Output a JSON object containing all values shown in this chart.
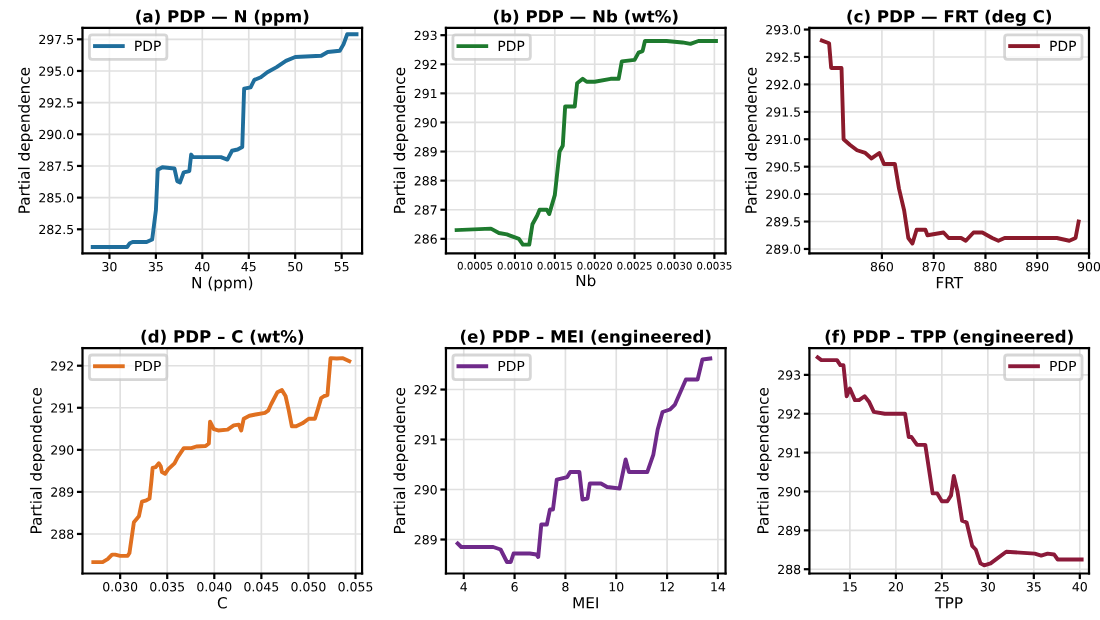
{
  "chart_data": [
    {
      "type": "line",
      "title": "(a) PDP — N (ppm)",
      "xlabel": "N (ppm)",
      "ylabel": "Partial dependence",
      "legend": "top left",
      "grid": true,
      "xlim": [
        27.1,
        57.2
      ],
      "xticks": [
        30,
        35,
        40,
        45,
        50,
        55
      ],
      "ylim": [
        280.6,
        298.4
      ],
      "yticks": [
        {
          "value": 282.5,
          "label": "282.5"
        },
        {
          "value": 285,
          "label": "285.0"
        },
        {
          "value": 287.5,
          "label": "287.5"
        },
        {
          "value": 290,
          "label": "290.0"
        },
        {
          "value": 292.5,
          "label": "292.5"
        },
        {
          "value": 295,
          "label": "295.0"
        },
        {
          "value": 297.5,
          "label": "297.5"
        }
      ],
      "series": [
        {
          "name": "PDP",
          "color": "#1f6e9c",
          "x": [
            28.2,
            31.9,
            32.2,
            32.5,
            34,
            34.6,
            35,
            35.2,
            35.7,
            37,
            37.3,
            37.6,
            38,
            38.6,
            38.8,
            39,
            42,
            42.7,
            43.2,
            43.8,
            44.3,
            44.5,
            45.2,
            45.6,
            46.3,
            47,
            48,
            49,
            50,
            52.8,
            53.5,
            54.8,
            55.2,
            55.6,
            56.6
          ],
          "values": [
            281.1,
            281.1,
            281.4,
            281.5,
            281.5,
            281.7,
            284,
            287.2,
            287.4,
            287.3,
            286.3,
            286.2,
            287,
            287.1,
            288.4,
            288.2,
            288.2,
            288,
            288.7,
            288.8,
            289,
            293.6,
            293.7,
            294.3,
            294.5,
            294.9,
            295.3,
            295.8,
            296.1,
            296.2,
            296.5,
            296.6,
            297.1,
            297.9,
            297.9
          ]
        }
      ]
    },
    {
      "type": "line",
      "title": "(b) PDP — Nb (wt%)",
      "xlabel": "Nb",
      "ylabel": "Partial dependence",
      "legend": "top left",
      "grid": true,
      "xlim": [
        0.000136,
        0.00364
      ],
      "xticks": [
        0.0005,
        {
          "value": 0.001,
          "label": "0.0010"
        },
        0.0015,
        {
          "value": 0.002,
          "label": "0.0020"
        },
        0.0025,
        {
          "value": 0.003,
          "label": "0.0030"
        },
        0.0035
      ],
      "ylim": [
        285.5,
        293.25
      ],
      "yticks": [
        286,
        287,
        288,
        289,
        290,
        291,
        292,
        293
      ],
      "series": [
        {
          "name": "PDP",
          "color": "#1e7a2e",
          "x": [
            0.00027,
            0.0007,
            0.0008,
            0.0009,
            0.001,
            0.00105,
            0.0011,
            0.00118,
            0.00122,
            0.00128,
            0.00131,
            0.0014,
            0.00143,
            0.0015,
            0.00156,
            0.0016,
            0.00163,
            0.00175,
            0.00178,
            0.00185,
            0.0019,
            0.002,
            0.0022,
            0.0023,
            0.00234,
            0.0025,
            0.00255,
            0.0026,
            0.00263,
            0.0029,
            0.0031,
            0.0032,
            0.0033,
            0.00352
          ],
          "values": [
            286.3,
            286.35,
            286.2,
            286.15,
            286.05,
            286.0,
            285.8,
            285.8,
            286.5,
            286.8,
            287.0,
            287.0,
            286.85,
            287.5,
            289.0,
            289.2,
            290.55,
            290.55,
            291.35,
            291.5,
            291.4,
            291.4,
            291.5,
            291.5,
            292.1,
            292.15,
            292.4,
            292.45,
            292.8,
            292.8,
            292.75,
            292.7,
            292.8,
            292.8
          ]
        }
      ]
    },
    {
      "type": "line",
      "title": "(c) PDP — FRT (deg C)",
      "xlabel": "FRT",
      "ylabel": "Partial dependence",
      "legend": "top right",
      "grid": true,
      "xlim": [
        846,
        900
      ],
      "xticks": [
        860,
        870,
        880,
        890,
        900
      ],
      "ylim": [
        288.92,
        293.03
      ],
      "yticks": [
        {
          "value": 289,
          "label": "289.0"
        },
        289.5,
        {
          "value": 290,
          "label": "290.0"
        },
        290.5,
        {
          "value": 291,
          "label": "291.0"
        },
        291.5,
        {
          "value": 292,
          "label": "292.0"
        },
        292.5,
        {
          "value": 293,
          "label": "293.0"
        }
      ],
      "series": [
        {
          "name": "PDP",
          "color": "#8b1a2b",
          "x": [
            848.4,
            849.8,
            850.2,
            852.2,
            852.6,
            853.8,
            855.2,
            856.8,
            858.0,
            859.5,
            860.4,
            862.5,
            863.3,
            864.3,
            865.1,
            865.9,
            866.7,
            868.4,
            868.8,
            871.9,
            872.9,
            875.3,
            876.2,
            877.7,
            879.4,
            881.3,
            882.5,
            883.7,
            889.6,
            893.8,
            896.2,
            897.4,
            898.0
          ],
          "values": [
            292.8,
            292.75,
            292.3,
            292.3,
            291.0,
            290.9,
            290.8,
            290.75,
            290.65,
            290.75,
            290.55,
            290.55,
            290.1,
            289.7,
            289.2,
            289.1,
            289.35,
            289.35,
            289.25,
            289.3,
            289.2,
            289.2,
            289.15,
            289.3,
            289.3,
            289.2,
            289.15,
            289.2,
            289.2,
            289.2,
            289.15,
            289.2,
            289.5
          ]
        }
      ]
    },
    {
      "type": "line",
      "title": "(d) PDP – C (wt%)",
      "xlabel": "C",
      "ylabel": "Partial dependence",
      "legend": "top left",
      "grid": true,
      "xlim": [
        0.026,
        0.0557
      ],
      "xticks": [
        {
          "value": 0.03,
          "label": "0.030"
        },
        0.035,
        {
          "value": 0.04,
          "label": "0.040"
        },
        0.045,
        {
          "value": 0.05,
          "label": "0.050"
        },
        0.055
      ],
      "ylim": [
        287.06,
        292.42
      ],
      "yticks": [
        288,
        289,
        290,
        291,
        292
      ],
      "series": [
        {
          "name": "PDP",
          "color": "#e07020",
          "x": [
            0.02715,
            0.02814,
            0.02867,
            0.02914,
            0.02947,
            0.03,
            0.0308,
            0.03099,
            0.03146,
            0.03199,
            0.03232,
            0.03279,
            0.03312,
            0.03332,
            0.03345,
            0.03378,
            0.03411,
            0.03431,
            0.03444,
            0.03477,
            0.03511,
            0.03577,
            0.0361,
            0.03676,
            0.03756,
            0.03809,
            0.03908,
            0.03942,
            0.03955,
            0.03995,
            0.04041,
            0.04141,
            0.04207,
            0.0426,
            0.04286,
            0.04313,
            0.04373,
            0.04439,
            0.04538,
            0.04572,
            0.04605,
            0.04671,
            0.04718,
            0.04757,
            0.0479,
            0.04824,
            0.0487,
            0.04936,
            0.05003,
            0.05069,
            0.05102,
            0.05135,
            0.05168,
            0.05202,
            0.05235,
            0.05301,
            0.05367,
            0.05434
          ],
          "values": [
            287.33,
            287.33,
            287.4,
            287.51,
            287.51,
            287.48,
            287.48,
            287.55,
            288.28,
            288.42,
            288.77,
            288.8,
            288.84,
            289.26,
            289.57,
            289.59,
            289.68,
            289.61,
            289.47,
            289.43,
            289.54,
            289.68,
            289.82,
            290.04,
            290.04,
            290.08,
            290.09,
            290.15,
            290.67,
            290.49,
            290.46,
            290.48,
            290.58,
            290.6,
            290.46,
            290.74,
            290.81,
            290.84,
            290.88,
            290.93,
            291.09,
            291.37,
            291.42,
            291.28,
            290.95,
            290.56,
            290.56,
            290.63,
            290.74,
            290.74,
            290.98,
            291.23,
            291.28,
            291.3,
            292.18,
            292.17,
            292.18,
            292.11
          ]
        }
      ]
    },
    {
      "type": "line",
      "title": "(e) PDP – MEI (engineered)",
      "xlabel": "MEI",
      "ylabel": "Partial dependence",
      "legend": "top left",
      "grid": true,
      "xlim": [
        3.3,
        14.3
      ],
      "xticks": [
        4,
        6,
        8,
        10,
        12,
        14
      ],
      "ylim": [
        288.32,
        292.83
      ],
      "yticks": [
        289,
        290,
        291,
        292
      ],
      "series": [
        {
          "name": "PDP",
          "color": "#6f2a8a",
          "x": [
            3.76,
            3.9,
            5.16,
            5.45,
            5.7,
            5.85,
            5.96,
            6.6,
            6.86,
            6.93,
            7.05,
            7.27,
            7.39,
            7.51,
            7.66,
            8.07,
            8.19,
            8.55,
            8.67,
            8.87,
            8.96,
            9.4,
            9.64,
            10.13,
            10.37,
            10.5,
            11.22,
            11.46,
            11.63,
            11.82,
            12.11,
            12.31,
            12.74,
            13.2,
            13.39,
            13.7
          ],
          "values": [
            288.92,
            288.85,
            288.85,
            288.8,
            288.55,
            288.55,
            288.72,
            288.72,
            288.7,
            288.65,
            289.3,
            289.3,
            289.6,
            289.6,
            290.2,
            290.25,
            290.35,
            290.35,
            289.8,
            289.82,
            290.12,
            290.12,
            290.05,
            290.02,
            290.6,
            290.35,
            290.35,
            290.7,
            291.2,
            291.55,
            291.6,
            291.7,
            292.2,
            292.2,
            292.6,
            292.62
          ]
        }
      ]
    },
    {
      "type": "line",
      "title": "(f) PDP – TPP (engineered)",
      "xlabel": "TPP",
      "ylabel": "Partial dependence",
      "legend": "top right",
      "grid": true,
      "xlim": [
        10.6,
        41.0
      ],
      "xticks": [
        15,
        20,
        25,
        30,
        35,
        40
      ],
      "ylim": [
        287.89,
        293.69
      ],
      "yticks": [
        288,
        289,
        290,
        291,
        292,
        293
      ],
      "series": [
        {
          "name": "PDP",
          "color": "#8b1a3a",
          "x": [
            11.5,
            11.9,
            13.6,
            13.96,
            14.3,
            14.65,
            15.0,
            15.55,
            16.0,
            16.6,
            17.1,
            17.6,
            18.8,
            21.0,
            21.4,
            21.7,
            22.3,
            23.2,
            24.0,
            24.5,
            25.0,
            25.6,
            26.0,
            26.3,
            26.7,
            27.2,
            27.7,
            28.3,
            28.7,
            29.2,
            29.6,
            30.3,
            32.0,
            35.1,
            35.8,
            36.5,
            37.2,
            37.6,
            40.2
          ],
          "values": [
            293.45,
            293.38,
            293.38,
            293.25,
            293.25,
            292.45,
            292.65,
            292.35,
            292.35,
            292.45,
            292.3,
            292.05,
            292.0,
            292.0,
            291.4,
            291.4,
            291.2,
            291.2,
            289.95,
            289.95,
            289.75,
            289.75,
            289.9,
            290.4,
            290.0,
            289.25,
            289.2,
            288.6,
            288.5,
            288.15,
            288.1,
            288.15,
            288.45,
            288.4,
            288.35,
            288.4,
            288.38,
            288.25,
            288.25
          ]
        }
      ]
    }
  ]
}
